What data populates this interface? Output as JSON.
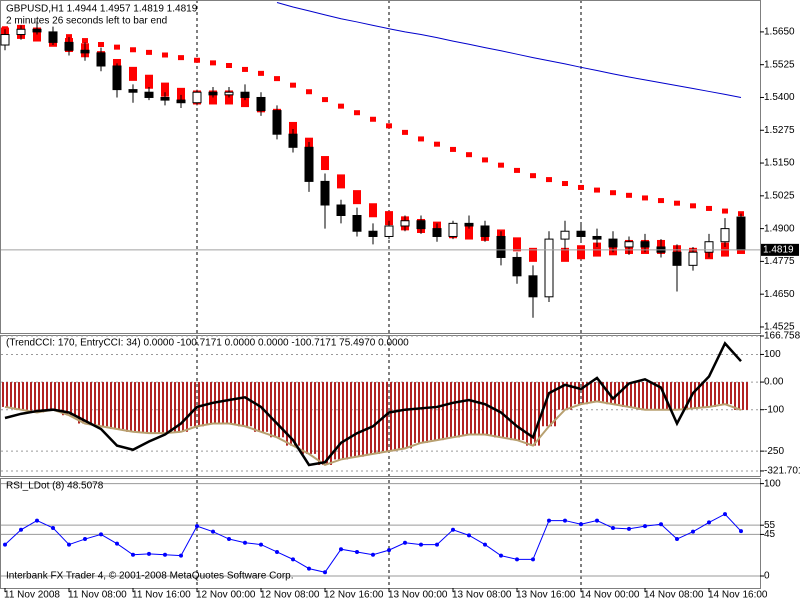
{
  "chart_data": [
    {
      "type": "candlestick",
      "title": "GBPUSD,H1 1.4944 1.4957 1.4819 1.4819",
      "subtitle": "2 minutes 26 seconds left to bar end",
      "open": [
        1.56,
        1.564,
        1.566,
        1.565,
        1.561,
        1.558,
        1.557,
        1.552,
        1.543,
        1.542,
        1.54,
        1.539,
        1.538,
        1.542,
        1.541,
        1.542,
        1.54,
        1.535,
        1.526,
        1.521,
        1.508,
        1.499,
        1.495,
        1.489,
        1.487,
        1.491,
        1.493,
        1.49,
        1.487,
        1.492,
        1.491,
        1.487,
        1.479,
        1.472,
        1.464,
        1.486,
        1.489,
        1.487,
        1.486,
        1.483,
        1.485,
        1.483,
        1.481,
        1.476,
        1.481,
        1.485,
        1.4944
      ],
      "high": [
        1.566,
        1.5675,
        1.569,
        1.567,
        1.563,
        1.561,
        1.559,
        1.553,
        1.545,
        1.544,
        1.542,
        1.541,
        1.543,
        1.544,
        1.544,
        1.545,
        1.542,
        1.537,
        1.528,
        1.523,
        1.511,
        1.501,
        1.498,
        1.492,
        1.493,
        1.495,
        1.495,
        1.492,
        1.493,
        1.495,
        1.493,
        1.489,
        1.481,
        1.476,
        1.489,
        1.493,
        1.492,
        1.49,
        1.489,
        1.487,
        1.488,
        1.486,
        1.484,
        1.483,
        1.488,
        1.494,
        1.4957
      ],
      "low": [
        1.558,
        1.562,
        1.564,
        1.56,
        1.556,
        1.554,
        1.55,
        1.54,
        1.538,
        1.539,
        1.537,
        1.536,
        1.537,
        1.54,
        1.54,
        1.539,
        1.533,
        1.524,
        1.519,
        1.504,
        1.49,
        1.492,
        1.487,
        1.484,
        1.486,
        1.489,
        1.488,
        1.485,
        1.486,
        1.49,
        1.485,
        1.476,
        1.469,
        1.456,
        1.462,
        1.482,
        1.485,
        1.483,
        1.481,
        1.48,
        1.481,
        1.479,
        1.466,
        1.474,
        1.479,
        1.483,
        1.4819
      ],
      "close": [
        1.564,
        1.566,
        1.565,
        1.561,
        1.558,
        1.557,
        1.552,
        1.543,
        1.542,
        1.54,
        1.539,
        1.538,
        1.542,
        1.541,
        1.542,
        1.54,
        1.535,
        1.526,
        1.521,
        1.508,
        1.499,
        1.495,
        1.489,
        1.487,
        1.491,
        1.493,
        1.49,
        1.487,
        1.492,
        1.491,
        1.487,
        1.479,
        1.472,
        1.464,
        1.486,
        1.489,
        1.487,
        1.486,
        1.483,
        1.485,
        1.483,
        1.481,
        1.476,
        1.481,
        1.485,
        1.49,
        1.4819
      ],
      "up_color": "#ffffff",
      "down_color": "#000000",
      "series": [
        {
          "style": "line",
          "color": "#0000cc",
          "values": [
            null,
            null,
            null,
            null,
            null,
            null,
            null,
            null,
            null,
            null,
            null,
            null,
            null,
            null,
            null,
            null,
            null,
            1.5762,
            1.5745,
            1.573,
            1.5715,
            1.57,
            1.5688,
            1.5675,
            1.5662,
            1.565,
            1.564,
            1.5628,
            1.5615,
            1.5603,
            1.559,
            1.5578,
            1.5565,
            1.5552,
            1.554,
            1.5528,
            1.5515,
            1.5503,
            1.549,
            1.5478,
            1.5467,
            1.5456,
            1.5445,
            1.5434,
            1.5423,
            1.5412,
            1.54
          ]
        },
        {
          "style": "dots",
          "color": "#ff0000",
          "values": [
            1.566,
            1.5655,
            1.565,
            1.564,
            1.563,
            1.5615,
            1.56,
            1.559,
            1.558,
            1.557,
            1.556,
            1.555,
            1.554,
            1.553,
            1.552,
            1.5505,
            1.549,
            1.547,
            1.5445,
            1.542,
            1.539,
            1.5365,
            1.534,
            1.5315,
            1.529,
            1.5265,
            1.524,
            1.522,
            1.52,
            1.518,
            1.516,
            1.514,
            1.512,
            1.51,
            1.5085,
            1.507,
            1.5055,
            1.5045,
            1.5035,
            1.5025,
            1.5015,
            1.5005,
            1.4995,
            1.4985,
            1.4975,
            1.4965,
            1.4955
          ]
        },
        {
          "style": "blocks",
          "color": "#ff0000",
          "values": [
            1.564,
            1.565,
            1.564,
            1.562,
            1.56,
            1.558,
            1.555,
            1.552,
            1.549,
            1.546,
            1.543,
            1.541,
            1.54,
            1.54,
            1.54,
            1.539,
            1.537,
            1.533,
            1.528,
            1.522,
            1.515,
            1.508,
            1.502,
            1.497,
            1.494,
            1.492,
            1.491,
            1.49,
            1.489,
            1.4885,
            1.488,
            1.487,
            1.484,
            1.48,
            1.478,
            1.48,
            1.481,
            1.482,
            1.4825,
            1.483,
            1.483,
            1.483,
            1.481,
            1.48,
            1.481,
            1.482,
            1.483
          ]
        }
      ],
      "last_price": 1.4819,
      "ylim": [
        1.4502,
        1.5764
      ],
      "yticks": [
        {
          "value": 1.565,
          "label": "1.5650"
        },
        1.5525,
        {
          "value": 1.54,
          "label": "1.5400"
        },
        1.5275,
        {
          "value": 1.515,
          "label": "1.5150"
        },
        1.5025,
        {
          "value": 1.49,
          "label": "1.4900"
        },
        1.4775,
        {
          "value": 1.465,
          "label": "1.4650"
        },
        1.4525
      ],
      "grid": false
    },
    {
      "type": "bar",
      "title": "(TrendCCI: 170, EntryCCI: 34) 0.0000 -100.7171 0.0000 0.0000 -100.7171 75.4970 0.0000",
      "series": [
        {
          "style": "bar",
          "color": "#b22222",
          "values": [
            -90,
            -100,
            -110,
            -100,
            -120,
            -150,
            -160,
            -170,
            -180,
            -185,
            -185,
            -180,
            -160,
            -150,
            -150,
            -160,
            -180,
            -200,
            -230,
            -260,
            -300,
            -280,
            -270,
            -260,
            -250,
            -240,
            -220,
            -210,
            -200,
            -190,
            -190,
            -200,
            -210,
            -230,
            -160,
            -100,
            -80,
            -70,
            -80,
            -90,
            -100,
            -100,
            -100,
            -95,
            -90,
            -80,
            -100.7171
          ]
        },
        {
          "style": "line",
          "color": "#000000",
          "values": [
            -130,
            -115,
            -105,
            -100,
            -110,
            -140,
            -170,
            -230,
            -245,
            -215,
            -190,
            -150,
            -90,
            -75,
            -65,
            -55,
            -90,
            -150,
            -210,
            -300,
            -290,
            -220,
            -185,
            -160,
            -110,
            -100,
            -95,
            -90,
            -75,
            -65,
            -80,
            -110,
            -160,
            -200,
            -40,
            -10,
            -25,
            15,
            -60,
            -5,
            10,
            -20,
            -150,
            -40,
            20,
            140,
            75.497
          ]
        }
      ],
      "ylim": [
        -340,
        166.76
      ],
      "yticks": [
        166.7585,
        100,
        {
          "value": 0,
          "label": "0.00"
        },
        -100,
        -250,
        -321.701
      ],
      "grid": true
    },
    {
      "type": "line",
      "title": "RSI_LDot (8) 48.5078",
      "categories": [
        "11 Nov 2008",
        null,
        null,
        null,
        "11 Nov 08:00",
        null,
        null,
        null,
        "11 Nov 16:00",
        null,
        null,
        null,
        "12 Nov 00:00",
        null,
        null,
        null,
        "12 Nov 08:00",
        null,
        null,
        null,
        "12 Nov 16:00",
        null,
        null,
        null,
        "13 Nov 00:00",
        null,
        null,
        null,
        "13 Nov 08:00",
        null,
        null,
        null,
        "13 Nov 16:00",
        null,
        null,
        null,
        "14 Nov 00:00",
        null,
        null,
        null,
        "14 Nov 08:00",
        null,
        null,
        null,
        "14 Nov 16:00",
        null,
        null
      ],
      "series": [
        {
          "style": "line",
          "color": "#0000ff",
          "markers": true,
          "values": [
            34,
            50,
            60,
            52,
            34,
            40,
            45,
            35,
            23,
            24,
            23,
            22,
            54,
            48,
            40,
            36,
            34,
            26,
            18,
            8,
            4,
            29,
            26,
            23,
            28,
            36,
            34,
            34,
            50,
            44,
            34,
            22,
            18,
            18,
            60,
            60,
            56,
            60,
            52,
            51,
            54,
            56,
            40,
            48,
            58,
            67,
            48.5078
          ]
        }
      ],
      "ylim": [
        -13,
        105
      ],
      "yticks": [
        100,
        55,
        45,
        0
      ],
      "grid": true
    },
    {
      "footer": "Interbank FX Trader 4, © 2001-2008 MetaQuotes Software Corp."
    }
  ]
}
